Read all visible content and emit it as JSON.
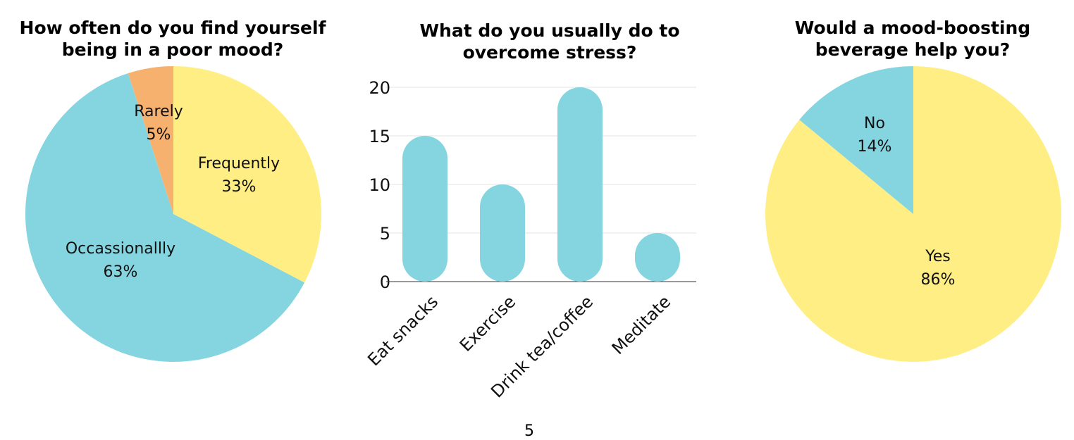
{
  "page": {
    "page_number": "5"
  },
  "colors": {
    "blue": "#85D5E1",
    "yellow": "#FEEE84",
    "orange": "#F7B16E",
    "grid": "#e3e3e3",
    "axis": "#333333"
  },
  "chart_data": [
    {
      "type": "pie",
      "title": "How often do you find yourself\nbeing in a poor mood?",
      "slices": [
        {
          "label": "Frequently",
          "value": 33,
          "display": "33%",
          "color": "#FEEE84"
        },
        {
          "label": "Occassionallly",
          "value": 63,
          "display": "63%",
          "color": "#85D5E1"
        },
        {
          "label": "Rarely",
          "value": 5,
          "display": "5%",
          "color": "#F7B16E"
        }
      ]
    },
    {
      "type": "bar",
      "title": "What do you usually do to\novercome stress?",
      "categories": [
        "Eat snacks",
        "Exercise",
        "Drink tea/coffee",
        "Meditate"
      ],
      "values": [
        15,
        10,
        20,
        5
      ],
      "ylim": [
        0,
        20
      ],
      "yticks": [
        0,
        5,
        10,
        15,
        20
      ],
      "grid": true,
      "color": "#85D5E1",
      "xlabel": "",
      "ylabel": ""
    },
    {
      "type": "pie",
      "title": "Would a mood-boosting\nbeverage help you?",
      "slices": [
        {
          "label": "Yes",
          "value": 86,
          "display": "86%",
          "color": "#FEEE84"
        },
        {
          "label": "No",
          "value": 14,
          "display": "14%",
          "color": "#85D5E1"
        }
      ]
    }
  ]
}
